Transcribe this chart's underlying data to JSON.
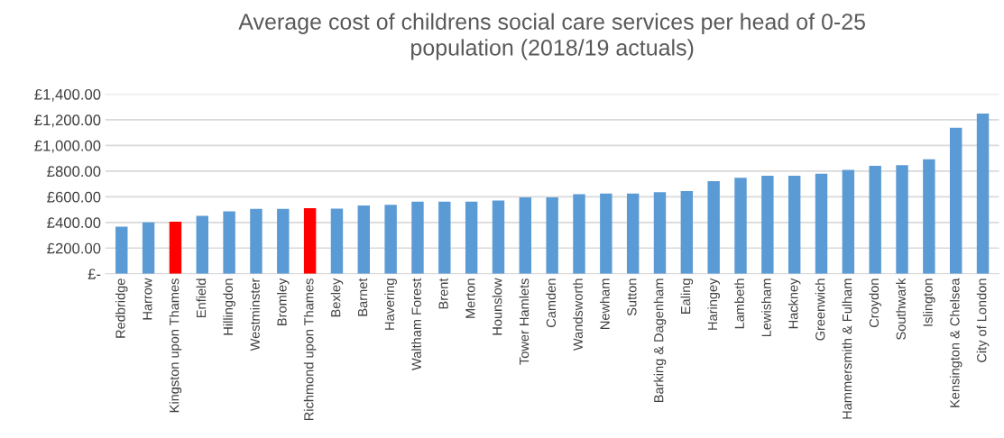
{
  "chart_data": {
    "type": "bar",
    "title": "Average cost of childrens social care services per head of 0-25\npopulation (2018/19 actuals)",
    "categories": [
      "Redbridge",
      "Harrow",
      "Kingston upon Thames",
      "Enfield",
      "Hillingdon",
      "Westminster",
      "Bromley",
      "Richmond upon Thames",
      "Bexley",
      "Barnet",
      "Havering",
      "Waltham Forest",
      "Brent",
      "Merton",
      "Hounslow",
      "Tower Hamlets",
      "Camden",
      "Wandsworth",
      "Newham",
      "Sutton",
      "Barking & Dagenham",
      "Ealing",
      "Haringey",
      "Lambeth",
      "Lewisham",
      "Hackney",
      "Greenwich",
      "Hammersmith & Fulham",
      "Croydon",
      "Southwark",
      "Islington",
      "Kensington & Chelsea",
      "City of London"
    ],
    "values": [
      367,
      400,
      405,
      451,
      486,
      506,
      506,
      511,
      508,
      532,
      537,
      562,
      562,
      562,
      570,
      595,
      595,
      620,
      625,
      625,
      636,
      645,
      722,
      748,
      764,
      764,
      780,
      810,
      841,
      846,
      892,
      1138,
      1248
    ],
    "colors": [
      "#5b9bd5",
      "#5b9bd5",
      "#ff0000",
      "#5b9bd5",
      "#5b9bd5",
      "#5b9bd5",
      "#5b9bd5",
      "#ff0000",
      "#5b9bd5",
      "#5b9bd5",
      "#5b9bd5",
      "#5b9bd5",
      "#5b9bd5",
      "#5b9bd5",
      "#5b9bd5",
      "#5b9bd5",
      "#5b9bd5",
      "#5b9bd5",
      "#5b9bd5",
      "#5b9bd5",
      "#5b9bd5",
      "#5b9bd5",
      "#5b9bd5",
      "#5b9bd5",
      "#5b9bd5",
      "#5b9bd5",
      "#5b9bd5",
      "#5b9bd5",
      "#5b9bd5",
      "#5b9bd5",
      "#5b9bd5",
      "#5b9bd5",
      "#5b9bd5"
    ],
    "ylim": [
      0,
      1400
    ],
    "yticks": [
      {
        "value": 0,
        "label": "£-"
      },
      {
        "value": 200,
        "label": "£200.00"
      },
      {
        "value": 400,
        "label": "£400.00"
      },
      {
        "value": 600,
        "label": "£600.00"
      },
      {
        "value": 800,
        "label": "£800.00"
      },
      {
        "value": 1000,
        "label": "£1,000.00"
      },
      {
        "value": 1200,
        "label": "£1,200.00"
      },
      {
        "value": 1400,
        "label": "£1,400.00"
      }
    ],
    "grid": "y",
    "legend": false
  }
}
